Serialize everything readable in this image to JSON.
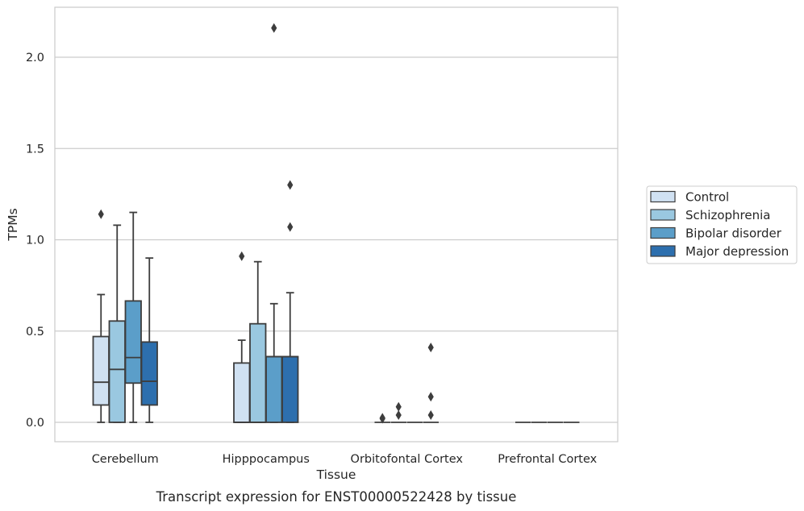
{
  "chart_data": {
    "type": "box",
    "xlabel": "Tissue",
    "ylabel": "TPMs",
    "caption": "Transcript expression for ENST00000522428 by tissue",
    "ylim": [
      -0.105,
      2.27
    ],
    "y_ticks": [
      0.0,
      0.5,
      1.0,
      1.5,
      2.0
    ],
    "y_tick_labels": [
      "0.0",
      "0.5",
      "1.0",
      "1.5",
      "2.0"
    ],
    "grid": "horizontal",
    "legend_position": "right",
    "categories": [
      "Cerebellum",
      "Hipppocampus",
      "Orbitofontal Cortex",
      "Prefrontal Cortex"
    ],
    "series": [
      {
        "name": "Control",
        "color": "#d0e1f2",
        "boxes": [
          {
            "whisker_low": 0.0,
            "q1": 0.095,
            "median": 0.22,
            "q3": 0.47,
            "whisker_high": 0.7,
            "outliers": [
              1.14
            ]
          },
          {
            "whisker_low": 0.0,
            "q1": 0.0,
            "median": 0.0,
            "q3": 0.325,
            "whisker_high": 0.45,
            "outliers": [
              0.91
            ]
          },
          {
            "whisker_low": 0.0,
            "q1": 0.0,
            "median": 0.0,
            "q3": 0.0,
            "whisker_high": 0.0,
            "outliers": [
              0.025,
              0.02
            ]
          },
          {
            "whisker_low": 0.0,
            "q1": 0.0,
            "median": 0.0,
            "q3": 0.0,
            "whisker_high": 0.0,
            "outliers": []
          }
        ]
      },
      {
        "name": "Schizophrenia",
        "color": "#9ac8e0",
        "boxes": [
          {
            "whisker_low": 0.0,
            "q1": 0.0,
            "median": 0.29,
            "q3": 0.555,
            "whisker_high": 1.08,
            "outliers": []
          },
          {
            "whisker_low": 0.0,
            "q1": 0.0,
            "median": 0.0,
            "q3": 0.54,
            "whisker_high": 0.88,
            "outliers": []
          },
          {
            "whisker_low": 0.0,
            "q1": 0.0,
            "median": 0.0,
            "q3": 0.0,
            "whisker_high": 0.0,
            "outliers": [
              0.085,
              0.04
            ]
          },
          {
            "whisker_low": 0.0,
            "q1": 0.0,
            "median": 0.0,
            "q3": 0.0,
            "whisker_high": 0.0,
            "outliers": []
          }
        ]
      },
      {
        "name": "Bipolar disorder",
        "color": "#5b9ec9",
        "boxes": [
          {
            "whisker_low": 0.0,
            "q1": 0.215,
            "median": 0.355,
            "q3": 0.665,
            "whisker_high": 1.15,
            "outliers": []
          },
          {
            "whisker_low": 0.0,
            "q1": 0.0,
            "median": 0.36,
            "q3": 0.36,
            "whisker_high": 0.65,
            "outliers": [
              2.16
            ]
          },
          {
            "whisker_low": 0.0,
            "q1": 0.0,
            "median": 0.0,
            "q3": 0.0,
            "whisker_high": 0.0,
            "outliers": []
          },
          {
            "whisker_low": 0.0,
            "q1": 0.0,
            "median": 0.0,
            "q3": 0.0,
            "whisker_high": 0.0,
            "outliers": []
          }
        ]
      },
      {
        "name": "Major depression",
        "color": "#2d6fae",
        "boxes": [
          {
            "whisker_low": 0.0,
            "q1": 0.095,
            "median": 0.225,
            "q3": 0.44,
            "whisker_high": 0.9,
            "outliers": []
          },
          {
            "whisker_low": 0.0,
            "q1": 0.0,
            "median": 0.36,
            "q3": 0.36,
            "whisker_high": 0.71,
            "outliers": [
              1.3,
              1.07
            ]
          },
          {
            "whisker_low": 0.0,
            "q1": 0.0,
            "median": 0.0,
            "q3": 0.0,
            "whisker_high": 0.0,
            "outliers": [
              0.41,
              0.14,
              0.04
            ]
          },
          {
            "whisker_low": 0.0,
            "q1": 0.0,
            "median": 0.0,
            "q3": 0.0,
            "whisker_high": 0.0,
            "outliers": []
          }
        ]
      }
    ]
  }
}
